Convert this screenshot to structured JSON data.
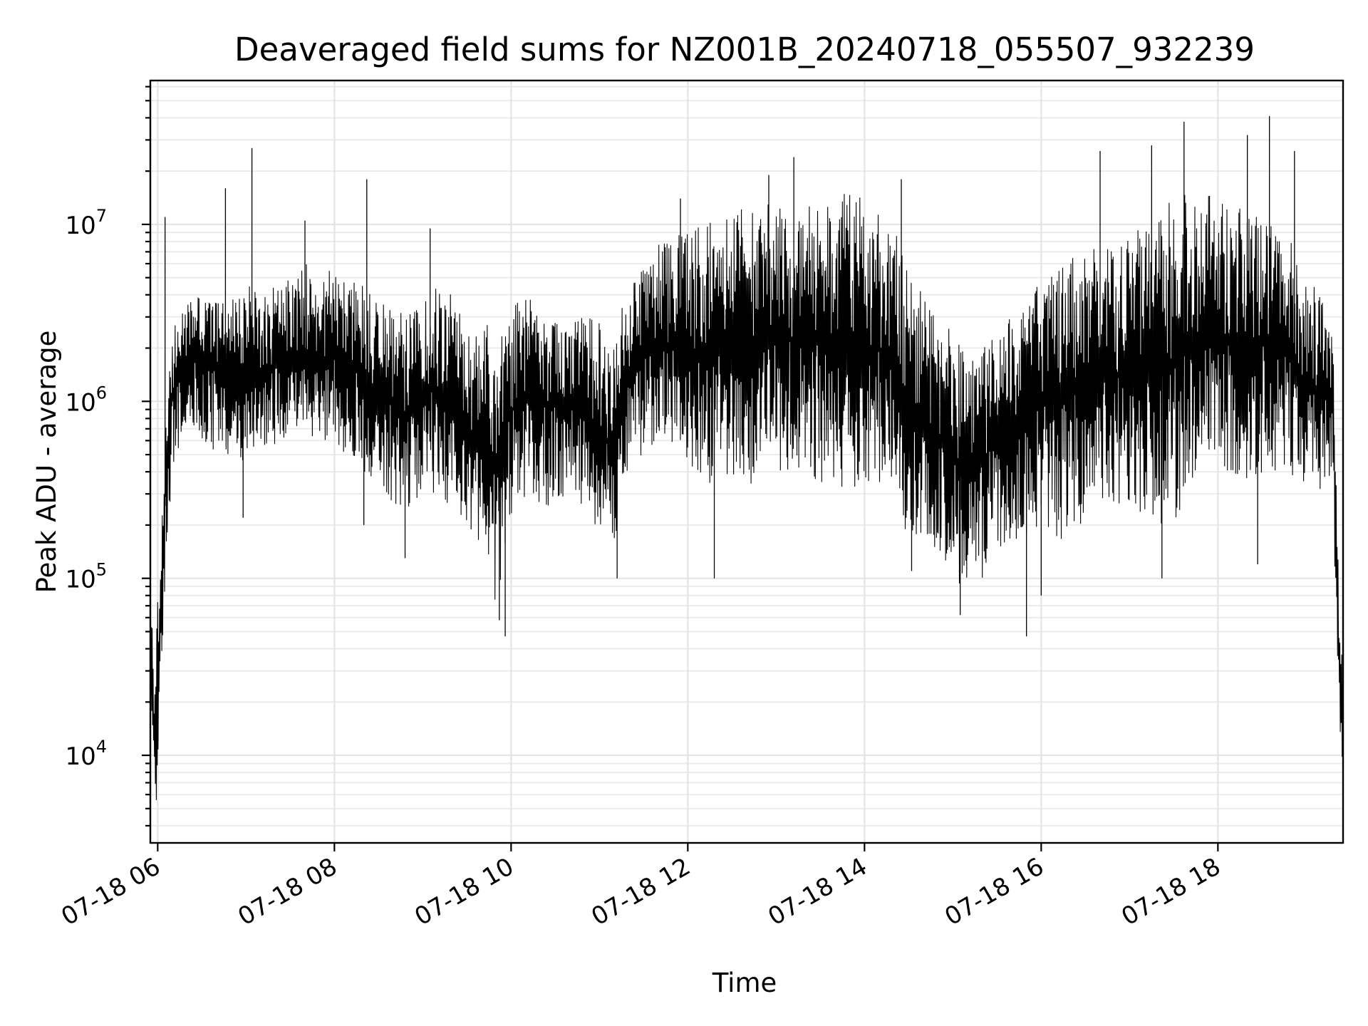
{
  "chart_data": {
    "type": "line",
    "title": "Deaveraged field sums for NZ001B_20240718_055507_932239",
    "xlabel": "Time",
    "ylabel": "Peak ADU - average",
    "yscale": "log",
    "ylim": [
      3200,
      65000000
    ],
    "xlim": [
      "2024-07-18 05:55",
      "2024-07-18 19:25"
    ],
    "grid": true,
    "x_ticks": [
      "07-18 06",
      "07-18 08",
      "07-18 10",
      "07-18 12",
      "07-18 14",
      "07-18 16",
      "07-18 18"
    ],
    "y_ticks": [
      {
        "base": "10",
        "exp": "4"
      },
      {
        "base": "10",
        "exp": "5"
      },
      {
        "base": "10",
        "exp": "6"
      },
      {
        "base": "10",
        "exp": "7"
      }
    ],
    "series": [
      {
        "color": "#000000",
        "x": [
          "2024-07-18 05:55",
          "2024-07-18 05:57",
          "2024-07-18 05:58",
          "2024-07-18 06:00",
          "2024-07-18 06:02",
          "2024-07-18 06:04",
          "2024-07-18 06:06",
          "2024-07-18 06:10",
          "2024-07-18 06:20",
          "2024-07-18 06:30",
          "2024-07-18 06:40",
          "2024-07-18 06:50",
          "2024-07-18 07:00",
          "2024-07-18 07:10",
          "2024-07-18 07:20",
          "2024-07-18 07:30",
          "2024-07-18 07:40",
          "2024-07-18 07:50",
          "2024-07-18 08:00",
          "2024-07-18 08:10",
          "2024-07-18 08:20",
          "2024-07-18 08:30",
          "2024-07-18 08:40",
          "2024-07-18 08:50",
          "2024-07-18 09:00",
          "2024-07-18 09:10",
          "2024-07-18 09:20",
          "2024-07-18 09:30",
          "2024-07-18 09:40",
          "2024-07-18 09:50",
          "2024-07-18 10:00",
          "2024-07-18 10:10",
          "2024-07-18 10:20",
          "2024-07-18 10:30",
          "2024-07-18 10:40",
          "2024-07-18 10:50",
          "2024-07-18 11:00",
          "2024-07-18 11:10",
          "2024-07-18 11:20",
          "2024-07-18 11:30",
          "2024-07-18 11:40",
          "2024-07-18 11:50",
          "2024-07-18 12:00",
          "2024-07-18 12:10",
          "2024-07-18 12:20",
          "2024-07-18 12:30",
          "2024-07-18 12:40",
          "2024-07-18 12:50",
          "2024-07-18 13:00",
          "2024-07-18 13:10",
          "2024-07-18 13:20",
          "2024-07-18 13:30",
          "2024-07-18 13:40",
          "2024-07-18 13:50",
          "2024-07-18 14:00",
          "2024-07-18 14:10",
          "2024-07-18 14:20",
          "2024-07-18 14:30",
          "2024-07-18 14:40",
          "2024-07-18 14:50",
          "2024-07-18 15:00",
          "2024-07-18 15:10",
          "2024-07-18 15:20",
          "2024-07-18 15:30",
          "2024-07-18 15:40",
          "2024-07-18 15:50",
          "2024-07-18 16:00",
          "2024-07-18 16:10",
          "2024-07-18 16:20",
          "2024-07-18 16:30",
          "2024-07-18 16:40",
          "2024-07-18 16:50",
          "2024-07-18 17:00",
          "2024-07-18 17:10",
          "2024-07-18 17:20",
          "2024-07-18 17:30",
          "2024-07-18 17:40",
          "2024-07-18 17:50",
          "2024-07-18 18:00",
          "2024-07-18 18:10",
          "2024-07-18 18:20",
          "2024-07-18 18:30",
          "2024-07-18 18:40",
          "2024-07-18 18:50",
          "2024-07-18 19:00",
          "2024-07-18 19:10",
          "2024-07-18 19:14",
          "2024-07-18 19:18",
          "2024-07-18 19:20",
          "2024-07-18 19:22",
          "2024-07-18 19:24",
          "2024-07-18 19:25"
        ],
        "lo": [
          20000,
          8000,
          6000,
          5000,
          25000,
          60000,
          150000,
          400000,
          800000,
          600000,
          500000,
          500000,
          450000,
          500000,
          550000,
          600000,
          650000,
          600000,
          550000,
          500000,
          400000,
          350000,
          250000,
          250000,
          300000,
          300000,
          250000,
          200000,
          150000,
          60000,
          200000,
          300000,
          250000,
          250000,
          300000,
          250000,
          150000,
          120000,
          400000,
          500000,
          600000,
          500000,
          450000,
          300000,
          400000,
          350000,
          300000,
          300000,
          300000,
          350000,
          400000,
          300000,
          300000,
          300000,
          350000,
          300000,
          350000,
          150000,
          150000,
          150000,
          100000,
          80000,
          100000,
          150000,
          150000,
          180000,
          200000,
          150000,
          200000,
          200000,
          250000,
          250000,
          250000,
          200000,
          200000,
          200000,
          300000,
          400000,
          400000,
          400000,
          300000,
          400000,
          400000,
          350000,
          300000,
          300000,
          400000,
          300000,
          50000,
          20000,
          10000,
          7500
        ],
        "hi": [
          60000,
          50000,
          25000,
          80000,
          200000,
          400000,
          1200000,
          3000000,
          4000000,
          4000000,
          4500000,
          4000000,
          5000000,
          4000000,
          4500000,
          5000000,
          6000000,
          5500000,
          5500000,
          5000000,
          4500000,
          4000000,
          3500000,
          3000000,
          4000000,
          4500000,
          4000000,
          2500000,
          2500000,
          3500000,
          4000000,
          4000000,
          3500000,
          3500000,
          3000000,
          3000000,
          3000000,
          2500000,
          5000000,
          6500000,
          8000000,
          9000000,
          9500000,
          10000000,
          11000000,
          12000000,
          13000000,
          14000000,
          15000000,
          15000000,
          14000000,
          14000000,
          15000000,
          15000000,
          14000000,
          12000000,
          10000000,
          6000000,
          4000000,
          3000000,
          2500000,
          2000000,
          2000000,
          2500000,
          3000000,
          3500000,
          5000000,
          6000000,
          6500000,
          7000000,
          7500000,
          8000000,
          8500000,
          10000000,
          12000000,
          14000000,
          15000000,
          15000000,
          14000000,
          13000000,
          12000000,
          11000000,
          10000000,
          8000000,
          5000000,
          4000000,
          3000000,
          2500000,
          500000,
          100000,
          50000,
          30000
        ],
        "peaks": [
          {
            "x": "2024-07-18 06:05",
            "y": 11000000
          },
          {
            "x": "2024-07-18 06:46",
            "y": 16000000
          },
          {
            "x": "2024-07-18 07:04",
            "y": 27000000
          },
          {
            "x": "2024-07-18 07:40",
            "y": 10500000
          },
          {
            "x": "2024-07-18 08:22",
            "y": 18000000
          },
          {
            "x": "2024-07-18 09:05",
            "y": 9500000
          },
          {
            "x": "2024-07-18 11:55",
            "y": 14000000
          },
          {
            "x": "2024-07-18 12:55",
            "y": 19000000
          },
          {
            "x": "2024-07-18 13:12",
            "y": 24000000
          },
          {
            "x": "2024-07-18 14:25",
            "y": 18000000
          },
          {
            "x": "2024-07-18 16:40",
            "y": 26000000
          },
          {
            "x": "2024-07-18 17:15",
            "y": 28000000
          },
          {
            "x": "2024-07-18 17:37",
            "y": 38000000
          },
          {
            "x": "2024-07-18 18:20",
            "y": 32000000
          },
          {
            "x": "2024-07-18 18:35",
            "y": 41000000
          },
          {
            "x": "2024-07-18 18:52",
            "y": 26000000
          }
        ],
        "dips": [
          {
            "x": "2024-07-18 06:58",
            "y": 220000
          },
          {
            "x": "2024-07-18 08:20",
            "y": 200000
          },
          {
            "x": "2024-07-18 08:48",
            "y": 130000
          },
          {
            "x": "2024-07-18 09:52",
            "y": 58000
          },
          {
            "x": "2024-07-18 09:56",
            "y": 47000
          },
          {
            "x": "2024-07-18 11:12",
            "y": 100000
          },
          {
            "x": "2024-07-18 12:18",
            "y": 100000
          },
          {
            "x": "2024-07-18 14:32",
            "y": 110000
          },
          {
            "x": "2024-07-18 15:05",
            "y": 62000
          },
          {
            "x": "2024-07-18 15:50",
            "y": 47000
          },
          {
            "x": "2024-07-18 16:00",
            "y": 80000
          },
          {
            "x": "2024-07-18 17:22",
            "y": 100000
          },
          {
            "x": "2024-07-18 18:27",
            "y": 120000
          }
        ]
      }
    ]
  }
}
